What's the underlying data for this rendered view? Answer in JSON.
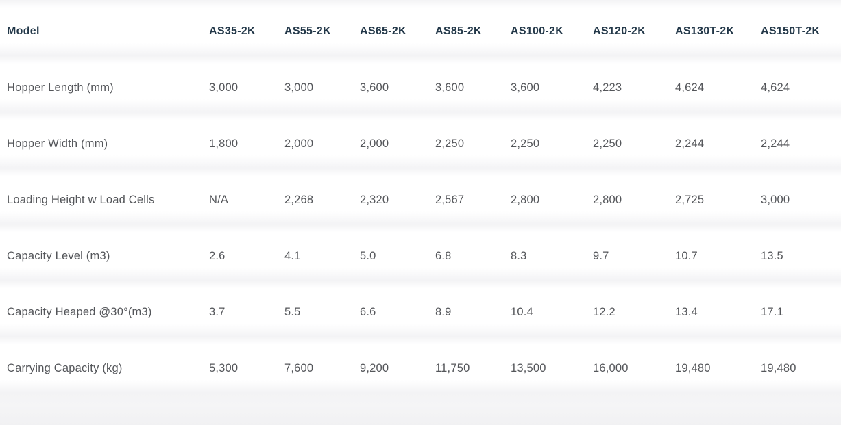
{
  "chart_data": {
    "type": "table",
    "columns": [
      "Model",
      "AS35-2K",
      "AS55-2K",
      "AS65-2K",
      "AS85-2K",
      "AS100-2K",
      "AS120-2K",
      "AS130T-2K",
      "AS150T-2K"
    ],
    "rows": [
      {
        "label": "Hopper Length (mm)",
        "values": [
          "3,000",
          "3,000",
          "3,600",
          "3,600",
          "3,600",
          "4,223",
          "4,624",
          "4,624"
        ]
      },
      {
        "label": "Hopper Width (mm)",
        "values": [
          "1,800",
          "2,000",
          "2,000",
          "2,250",
          "2,250",
          "2,250",
          "2,244",
          "2,244"
        ]
      },
      {
        "label": "Loading Height w Load Cells",
        "values": [
          "N/A",
          "2,268",
          "2,320",
          "2,567",
          "2,800",
          "2,800",
          "2,725",
          "3,000"
        ]
      },
      {
        "label": "Capacity Level (m3)",
        "values": [
          "2.6",
          "4.1",
          "5.0",
          "6.8",
          "8.3",
          "9.7",
          "10.7",
          "13.5"
        ]
      },
      {
        "label": "Capacity Heaped @30°(m3)",
        "values": [
          "3.7",
          "5.5",
          "6.6",
          "8.9",
          "10.4",
          "12.2",
          "13.4",
          "17.1"
        ]
      },
      {
        "label": "Carrying Capacity (kg)",
        "values": [
          "5,300",
          "7,600",
          "9,200",
          "11,750",
          "13,500",
          "16,000",
          "19,480",
          "19,480"
        ]
      }
    ],
    "layout": {
      "grid": "off",
      "row_divider_style": "soft-gradient-band"
    }
  },
  "colors": {
    "header_text": "#233849",
    "body_text": "#54565a",
    "row_divider": "#f3f3f5",
    "background": "#ffffff"
  }
}
